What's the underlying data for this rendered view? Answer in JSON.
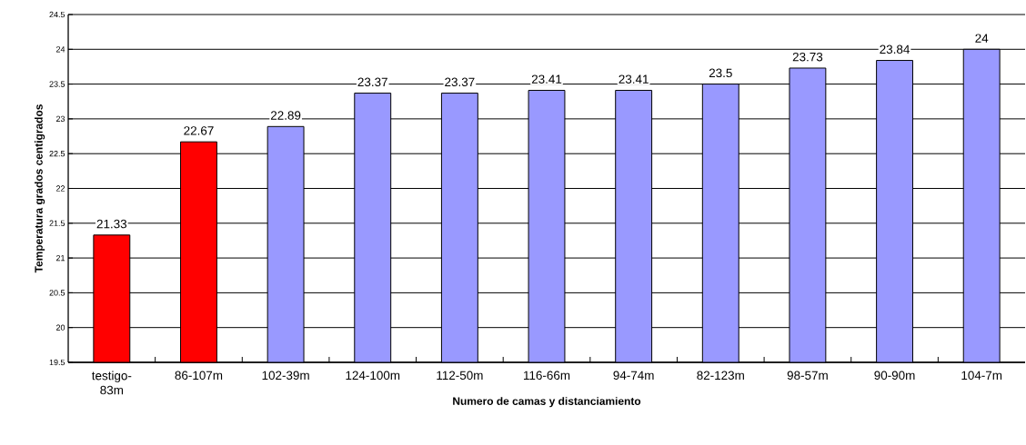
{
  "chart_data": {
    "type": "bar",
    "xlabel": "Numero de camas y distanciamiento",
    "ylabel": "Temperatura grados centigrados",
    "categories": [
      "testigo-83m",
      "86-107m",
      "102-39m",
      "124-100m",
      "112-50m",
      "116-66m",
      "94-74m",
      "82-123m",
      "98-57m",
      "90-90m",
      "104-7m"
    ],
    "values": [
      21.33,
      22.67,
      22.89,
      23.37,
      23.37,
      23.41,
      23.41,
      23.5,
      23.73,
      23.84,
      24
    ],
    "colors": [
      "#ff0000",
      "#ff0000",
      "#9999ff",
      "#9999ff",
      "#9999ff",
      "#9999ff",
      "#9999ff",
      "#9999ff",
      "#9999ff",
      "#9999ff",
      "#9999ff"
    ],
    "ylim": [
      19.5,
      24.5
    ],
    "yticks": [
      19.5,
      20,
      20.5,
      21,
      21.5,
      22,
      22.5,
      23,
      23.5,
      24,
      24.5
    ],
    "grid": "y",
    "data_labels": true
  }
}
